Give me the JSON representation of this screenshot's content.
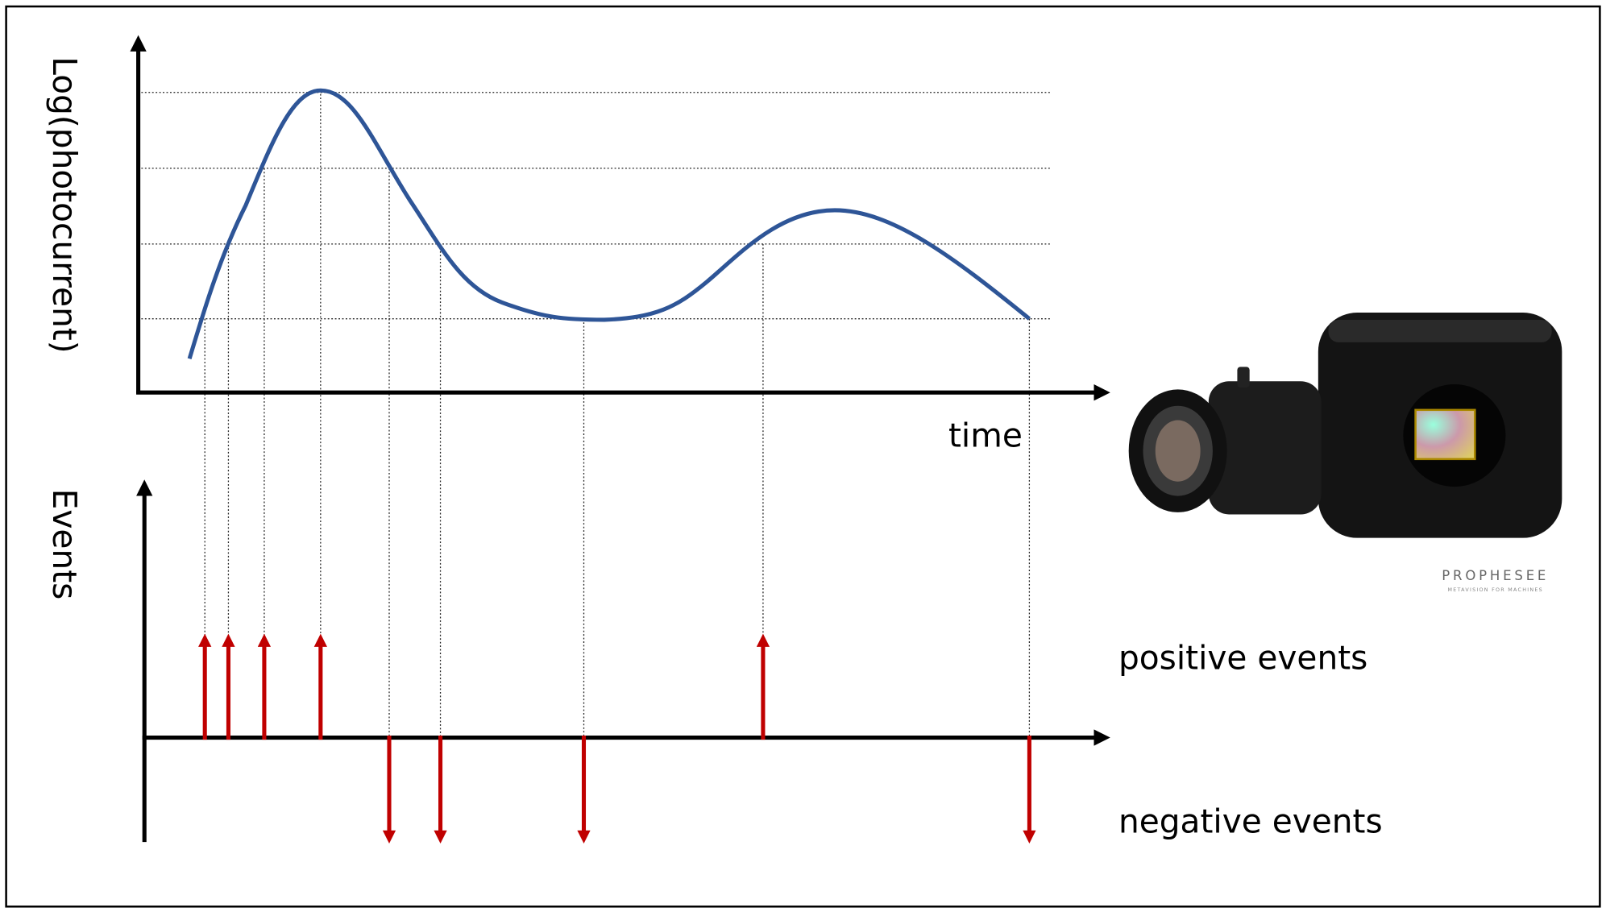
{
  "axes": {
    "y_label": "Log(photocurrent)",
    "x_label": "time",
    "events_label": "Events"
  },
  "legend": {
    "positive": "positive events",
    "negative": "negative events"
  },
  "logo": {
    "brand": "PROPHESEE",
    "tagline": "METAVISION FOR MACHINES"
  }
}
